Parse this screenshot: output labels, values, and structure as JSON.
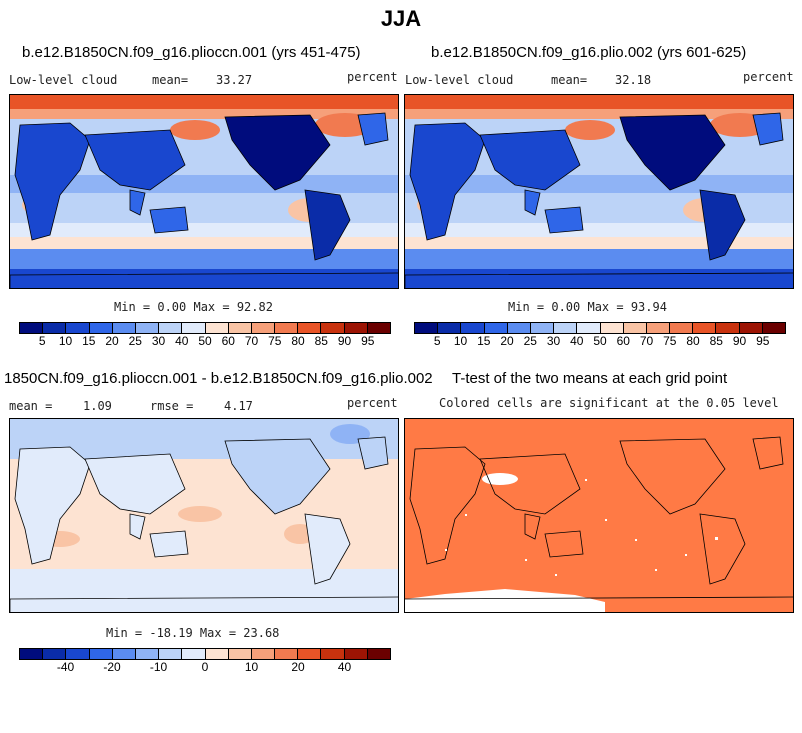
{
  "title": "JJA",
  "panels": [
    {
      "id": "p1",
      "title": "b.e12.B1850CN.f09_g16.plioccn.001 (yrs 451-475)",
      "left_label": "Low-level cloud",
      "mean_label": "mean=",
      "mean_value": "33.27",
      "units": "percent",
      "minmax": "Min =   0.00 Max =  92.82"
    },
    {
      "id": "p2",
      "title": "b.e12.B1850CN.f09_g16.plio.002 (yrs 601-625)",
      "left_label": "Low-level cloud",
      "mean_label": "mean=",
      "mean_value": "32.18",
      "units": "percent",
      "minmax": "Min =   0.00 Max =  93.94"
    },
    {
      "id": "p3",
      "title": "1850CN.f09_g16.plioccn.001 - b.e12.B1850CN.f09_g16.plio.002",
      "left_label": "mean =",
      "mean_value": "1.09",
      "rmse_label": "rmse =",
      "rmse_value": "4.17",
      "units": "percent",
      "minmax": "Min = -18.19 Max =  23.68"
    },
    {
      "id": "p4",
      "title": "T-test of the two means at each grid point",
      "subtitle": "Colored cells are significant at the 0.05 level"
    }
  ],
  "colorbars": {
    "cloud": {
      "colors": [
        "#000c7d",
        "#0a2ca8",
        "#1947cf",
        "#2f66e8",
        "#5b8cf0",
        "#8fb3f5",
        "#bcd3f7",
        "#e1ebfb",
        "#fde3d2",
        "#f9c4a5",
        "#f6a07a",
        "#f17a50",
        "#e85427",
        "#c8320e",
        "#9c1404",
        "#6b0000"
      ],
      "tick_labels": [
        "5",
        "10",
        "15",
        "20",
        "25",
        "30",
        "40",
        "50",
        "60",
        "70",
        "75",
        "80",
        "85",
        "90",
        "95"
      ]
    },
    "diff": {
      "colors": [
        "#000c7d",
        "#0a2ca8",
        "#1947cf",
        "#2f66e8",
        "#5b8cf0",
        "#8fb3f5",
        "#bcd3f7",
        "#e1ebfb",
        "#fde3d2",
        "#f9c4a5",
        "#f6a07a",
        "#f17a50",
        "#e85427",
        "#c8320e",
        "#9c1404",
        "#6b0000"
      ],
      "tick_labels": [
        "-40",
        "-20",
        "-10",
        "0",
        "10",
        "20",
        "40"
      ]
    }
  },
  "significance_color": "#ff7a45"
}
